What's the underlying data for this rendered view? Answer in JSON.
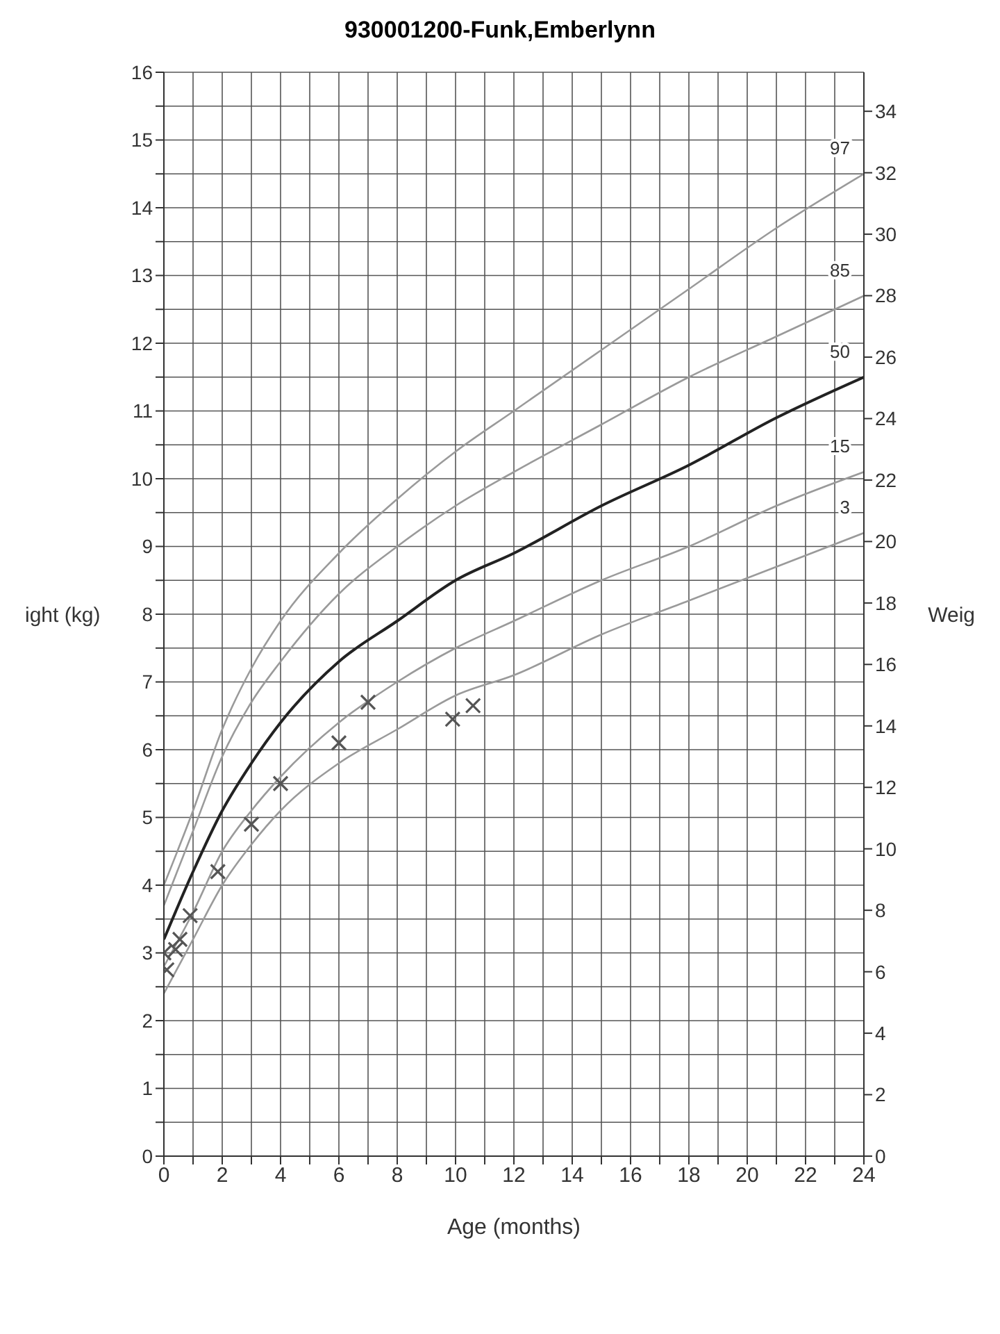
{
  "chart_data": {
    "type": "line",
    "title": "930001200-Funk,Emberlynn",
    "xlabel": "Age (months)",
    "ylabel": "ight (kg)",
    "y2label": "Weig",
    "xlim": [
      0,
      24
    ],
    "xticks": [
      0,
      {
        "value": 1,
        "label": null
      },
      2,
      {
        "value": 3,
        "label": null
      },
      4,
      {
        "value": 5,
        "label": null
      },
      6,
      {
        "value": 7,
        "label": null
      },
      8,
      {
        "value": 9,
        "label": null
      },
      10,
      {
        "value": 11,
        "label": null
      },
      12,
      {
        "value": 13,
        "label": null
      },
      14,
      {
        "value": 15,
        "label": null
      },
      16,
      {
        "value": 17,
        "label": null
      },
      18,
      {
        "value": 19,
        "label": null
      },
      20,
      {
        "value": 21,
        "label": null
      },
      22,
      {
        "value": 23,
        "label": null
      },
      24
    ],
    "ylim": [
      0,
      16
    ],
    "yticks": [
      0,
      {
        "value": 0.5,
        "label": null
      },
      1,
      {
        "value": 1.5,
        "label": null
      },
      2,
      {
        "value": 2.5,
        "label": null
      },
      3,
      {
        "value": 3.5,
        "label": null
      },
      4,
      {
        "value": 4.5,
        "label": null
      },
      5,
      {
        "value": 5.5,
        "label": null
      },
      6,
      {
        "value": 6.5,
        "label": null
      },
      7,
      {
        "value": 7.5,
        "label": null
      },
      8,
      {
        "value": 8.5,
        "label": null
      },
      9,
      {
        "value": 9.5,
        "label": null
      },
      10,
      {
        "value": 10.5,
        "label": null
      },
      11,
      {
        "value": 11.5,
        "label": null
      },
      12,
      {
        "value": 12.5,
        "label": null
      },
      13,
      {
        "value": 13.5,
        "label": null
      },
      14,
      {
        "value": 14.5,
        "label": null
      },
      15,
      {
        "value": 15.5,
        "label": null
      },
      16
    ],
    "y2lim": [
      0,
      35.27
    ],
    "y2ticks": [
      0,
      2,
      4,
      6,
      8,
      10,
      12,
      14,
      16,
      18,
      20,
      22,
      24,
      26,
      28,
      30,
      32,
      34
    ],
    "grid": true,
    "legend": false,
    "marker": "none",
    "line_style": "solid",
    "series": [
      {
        "name": "97",
        "color": "#9a9a9a",
        "x": [
          0,
          1,
          2,
          3,
          4,
          6,
          8,
          10,
          12,
          15,
          18,
          21,
          24
        ],
        "values": [
          4.0,
          5.1,
          6.3,
          7.2,
          7.9,
          8.9,
          9.7,
          10.4,
          11.0,
          11.9,
          12.8,
          13.7,
          14.5
        ]
      },
      {
        "name": "85",
        "color": "#9a9a9a",
        "x": [
          0,
          1,
          2,
          3,
          4,
          6,
          8,
          10,
          12,
          15,
          18,
          21,
          24
        ],
        "values": [
          3.7,
          4.8,
          5.9,
          6.7,
          7.3,
          8.3,
          9.0,
          9.6,
          10.1,
          10.8,
          11.5,
          12.1,
          12.7
        ]
      },
      {
        "name": "50",
        "color": "#222222",
        "x": [
          0,
          1,
          2,
          3,
          4,
          6,
          8,
          10,
          12,
          15,
          18,
          21,
          24
        ],
        "values": [
          3.2,
          4.2,
          5.1,
          5.8,
          6.4,
          7.3,
          7.9,
          8.5,
          8.9,
          9.6,
          10.2,
          10.9,
          11.5
        ]
      },
      {
        "name": "15",
        "color": "#9a9a9a",
        "x": [
          0,
          1,
          2,
          3,
          4,
          6,
          8,
          10,
          12,
          15,
          18,
          21,
          24
        ],
        "values": [
          2.8,
          3.6,
          4.5,
          5.1,
          5.6,
          6.4,
          7.0,
          7.5,
          7.9,
          8.5,
          9.0,
          9.6,
          10.1
        ]
      },
      {
        "name": "3",
        "color": "#9a9a9a",
        "x": [
          0,
          1,
          2,
          3,
          4,
          6,
          8,
          10,
          12,
          15,
          18,
          21,
          24
        ],
        "values": [
          2.4,
          3.2,
          4.0,
          4.6,
          5.1,
          5.8,
          6.3,
          6.8,
          7.1,
          7.7,
          8.2,
          8.7,
          9.2
        ]
      },
      {
        "type": "scatter",
        "marker": "cross",
        "color": "#555555",
        "x": [
          0,
          0.1,
          0.4,
          0.55,
          0.9,
          1.85,
          3,
          4,
          6,
          7,
          9.9,
          10.6
        ],
        "values": [
          3.0,
          2.75,
          3.05,
          3.2,
          3.55,
          4.2,
          4.9,
          5.5,
          6.1,
          6.7,
          6.45,
          6.65
        ]
      }
    ]
  }
}
